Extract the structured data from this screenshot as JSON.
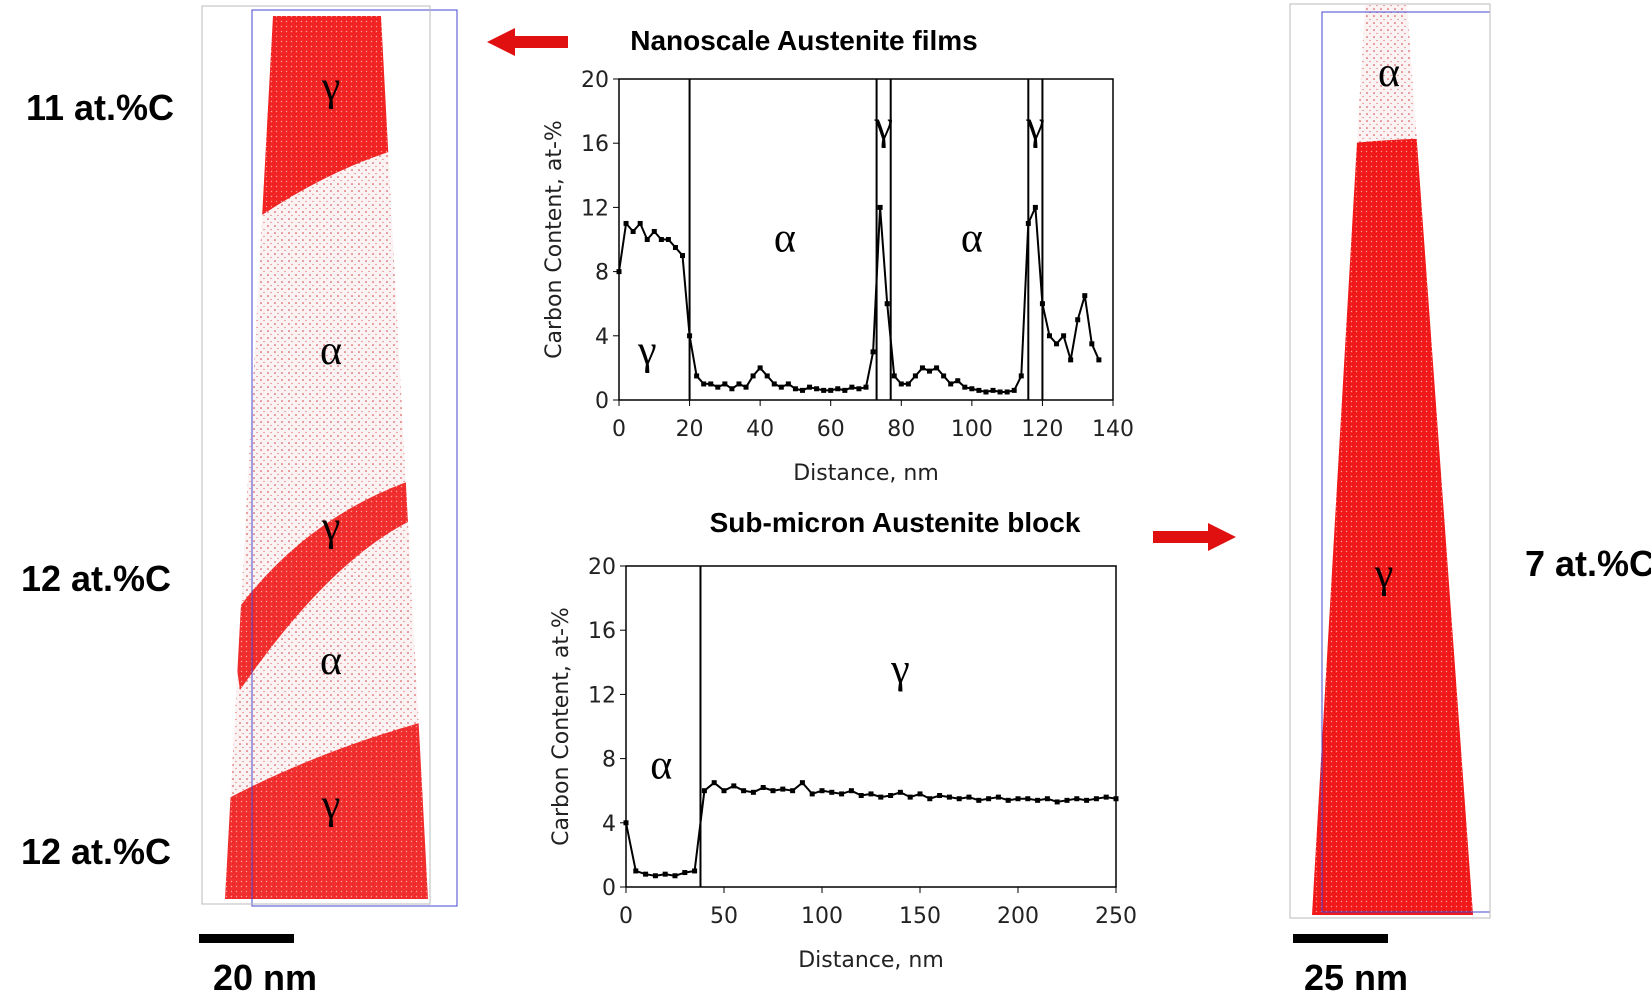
{
  "labels": {
    "left_contents": [
      "11 at.%C",
      "12 at.%C",
      "12 at.%C"
    ],
    "right_content": "7 at.%C",
    "left_scale": "20 nm",
    "right_scale": "25 nm",
    "left_phases": [
      "γ",
      "α",
      "γ",
      "α",
      "γ"
    ],
    "right_phases": [
      "α",
      "γ"
    ]
  },
  "chart_data": [
    {
      "type": "line",
      "title": "Nanoscale Austenite films",
      "xlabel": "Distance, nm",
      "ylabel": "Carbon Content, at-%",
      "xlim": [
        0,
        140
      ],
      "xticks": [
        0,
        20,
        40,
        60,
        80,
        100,
        120,
        140
      ],
      "ylim": [
        0,
        20
      ],
      "yticks": [
        0,
        4,
        8,
        12,
        16,
        20
      ],
      "color": "#000000",
      "boundaries": [
        20,
        73,
        77,
        116,
        120
      ],
      "annotations": [
        {
          "text": "γ",
          "x": 8,
          "y": 3
        },
        {
          "text": "α",
          "x": 47,
          "y": 10
        },
        {
          "text": "γ",
          "x": 75,
          "y": 17
        },
        {
          "text": "α",
          "x": 100,
          "y": 10
        },
        {
          "text": "γ",
          "x": 118,
          "y": 17
        }
      ],
      "x": [
        0,
        2,
        4,
        6,
        8,
        10,
        12,
        14,
        16,
        18,
        20,
        22,
        24,
        26,
        28,
        30,
        32,
        34,
        36,
        38,
        40,
        42,
        44,
        46,
        48,
        50,
        52,
        54,
        56,
        58,
        60,
        62,
        64,
        66,
        68,
        70,
        72,
        74,
        76,
        78,
        80,
        82,
        84,
        86,
        88,
        90,
        92,
        94,
        96,
        98,
        100,
        102,
        104,
        106,
        108,
        110,
        112,
        114,
        116,
        118,
        120,
        122,
        124,
        126,
        128,
        130,
        132,
        134,
        136
      ],
      "values": [
        8,
        11,
        10.5,
        11,
        10,
        10.5,
        10,
        10,
        9.5,
        9,
        4,
        1.5,
        1,
        1,
        0.8,
        1,
        0.7,
        1,
        0.8,
        1.5,
        2,
        1.5,
        1,
        0.8,
        1,
        0.7,
        0.6,
        0.8,
        0.7,
        0.6,
        0.6,
        0.7,
        0.6,
        0.8,
        0.7,
        0.8,
        3,
        12,
        6,
        1.5,
        1,
        1,
        1.5,
        2,
        1.8,
        2,
        1.5,
        1,
        1.2,
        0.8,
        0.7,
        0.6,
        0.5,
        0.6,
        0.5,
        0.5,
        0.6,
        1.5,
        11,
        12,
        6,
        4,
        3.5,
        4,
        2.5,
        5,
        6.5,
        3.5,
        2.5
      ]
    },
    {
      "type": "line",
      "title": "Sub-micron Austenite block",
      "xlabel": "Distance, nm",
      "ylabel": "Carbon Content, at-%",
      "xlim": [
        0,
        250
      ],
      "xticks": [
        0,
        50,
        100,
        150,
        200,
        250
      ],
      "ylim": [
        0,
        20
      ],
      "yticks": [
        0,
        4,
        8,
        12,
        16,
        20
      ],
      "color": "#000000",
      "boundaries": [
        38
      ],
      "annotations": [
        {
          "text": "α",
          "x": 18,
          "y": 7.5
        },
        {
          "text": "γ",
          "x": 140,
          "y": 13.5
        }
      ],
      "x": [
        0,
        5,
        10,
        15,
        20,
        25,
        30,
        35,
        40,
        45,
        50,
        55,
        60,
        65,
        70,
        75,
        80,
        85,
        90,
        95,
        100,
        105,
        110,
        115,
        120,
        125,
        130,
        135,
        140,
        145,
        150,
        155,
        160,
        165,
        170,
        175,
        180,
        185,
        190,
        195,
        200,
        205,
        210,
        215,
        220,
        225,
        230,
        235,
        240,
        245,
        250
      ],
      "values": [
        4,
        1,
        0.8,
        0.7,
        0.8,
        0.7,
        0.9,
        1,
        6,
        6.5,
        6,
        6.3,
        6,
        5.9,
        6.2,
        6,
        6.1,
        6,
        6.5,
        5.8,
        6,
        5.9,
        5.8,
        6,
        5.7,
        5.8,
        5.6,
        5.7,
        5.9,
        5.6,
        5.8,
        5.5,
        5.7,
        5.6,
        5.5,
        5.6,
        5.4,
        5.5,
        5.6,
        5.4,
        5.5,
        5.5,
        5.4,
        5.5,
        5.3,
        5.4,
        5.5,
        5.4,
        5.5,
        5.6,
        5.5
      ]
    }
  ]
}
